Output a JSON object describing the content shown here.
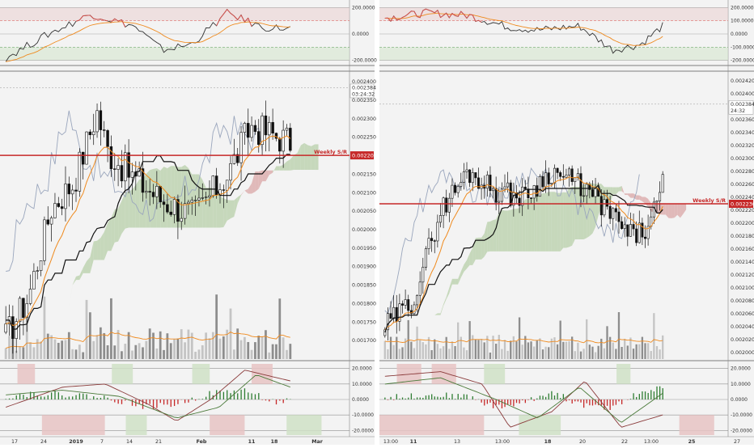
{
  "chart_data": [
    {
      "type": "candlestick",
      "panel": "left",
      "price_axis_labels": [
        "0.002400",
        "0.002384",
        "0.002350",
        "0.002300",
        "0.002250",
        "0.002201",
        "0.002150",
        "0.002100",
        "0.002050",
        "0.002000",
        "0.001950",
        "0.001900",
        "0.001850",
        "0.001800",
        "0.001750",
        "0.001700"
      ],
      "time_axis_labels": [
        "17",
        "24",
        "2019",
        "7",
        "14",
        "21",
        "Feb",
        "11",
        "18",
        "Mar"
      ],
      "last_price": "0.002384",
      "countdown": "03:24:32",
      "level_label": "Weekly S/R",
      "level_price": "0.002201",
      "level_value": 0.002201,
      "indicators": {
        "top": {
          "type": "cci",
          "labels": [
            "200.0000",
            "0.0000",
            "-200.0000"
          ]
        },
        "bottom": {
          "type": "oscillator-histogram",
          "labels": [
            "20.0000",
            "10.0000",
            "0.0000",
            "-10.0000",
            "-20.0000"
          ]
        }
      }
    },
    {
      "type": "candlestick",
      "panel": "right",
      "price_axis_labels": [
        "0.002420",
        "0.002400",
        "0.002384",
        "0.002360",
        "0.002340",
        "0.002320",
        "0.002300",
        "0.002280",
        "0.002260",
        "0.002240",
        "0.002230",
        "0.002220",
        "0.002200",
        "0.002180",
        "0.002160",
        "0.002140",
        "0.002120",
        "0.002100",
        "0.002080",
        "0.002060",
        "0.002040",
        "0.002020",
        "0.002000"
      ],
      "time_axis_labels": [
        "13:00",
        "11",
        "13",
        "13:00",
        "18",
        "20",
        "22",
        "13:00",
        "25",
        "27"
      ],
      "last_price": "0.002384",
      "countdown": "24:32",
      "level_label": "Weekly S/R",
      "level_price": "0.002230",
      "level_value": 0.00223,
      "indicators": {
        "top": {
          "type": "cci",
          "labels": [
            "200.0000",
            "100.0000",
            "0.0000",
            "-100.0000",
            "-200.0000"
          ]
        },
        "bottom": {
          "type": "oscillator-histogram",
          "labels": [
            "20.0000",
            "10.0000",
            "0.0000",
            "-10.0000",
            "-20.0000"
          ]
        }
      }
    }
  ],
  "colors": {
    "sr_line": "#c62828",
    "cloud_bear": "#d9a5a5",
    "cloud_bull": "#b7cfa8",
    "ema": "#ef8a1e",
    "kijun": "#111111",
    "chikou": "#9aa6bd",
    "osc_up": "#2e7d32",
    "osc_down": "#c62828"
  }
}
